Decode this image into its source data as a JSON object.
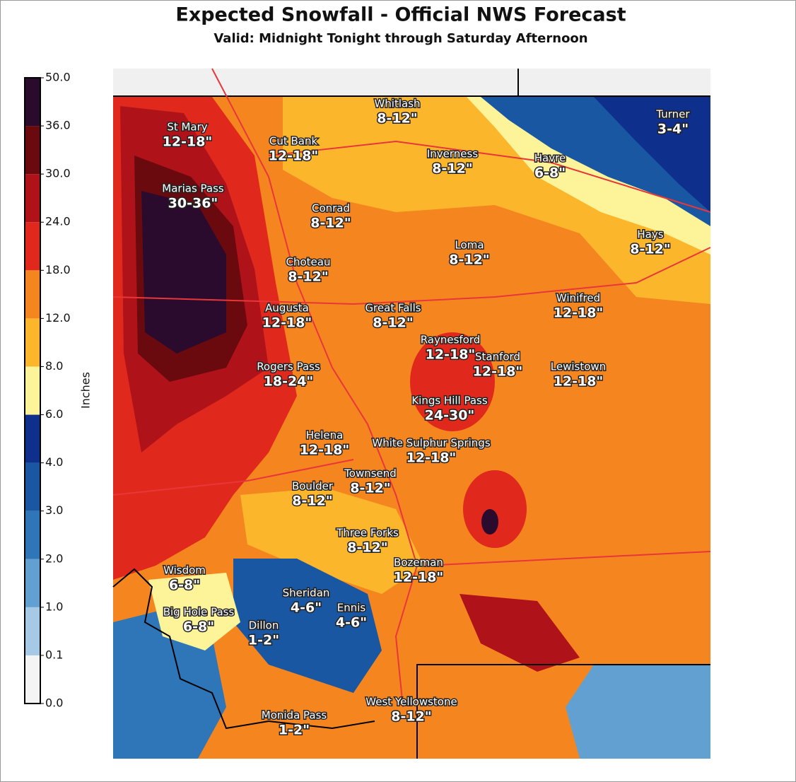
{
  "header": {
    "title": "Expected Snowfall - Official NWS Forecast",
    "subtitle": "Valid: Midnight Tonight through Saturday Afternoon"
  },
  "legend": {
    "label": "Inches",
    "ticks": [
      "0.0",
      "0.1",
      "1.0",
      "2.0",
      "3.0",
      "4.0",
      "6.0",
      "8.0",
      "12.0",
      "18.0",
      "24.0",
      "30.0",
      "36.0",
      "50.0"
    ],
    "colors": [
      "#f4f4f4",
      "#a6c9e6",
      "#62a0d2",
      "#2f76b8",
      "#1a57a3",
      "#0e2f8c",
      "#fdf49a",
      "#fbb62c",
      "#f5861f",
      "#e0281c",
      "#b0121a",
      "#6a0a0e",
      "#2a0b2e"
    ]
  },
  "locations": [
    {
      "name": "St Mary",
      "amount": "12-18\""
    },
    {
      "name": "Cut Bank",
      "amount": "12-18\""
    },
    {
      "name": "Whitlash",
      "amount": "8-12\""
    },
    {
      "name": "Turner",
      "amount": "3-4\""
    },
    {
      "name": "Inverness",
      "amount": "8-12\""
    },
    {
      "name": "Havre",
      "amount": "6-8\""
    },
    {
      "name": "Marias Pass",
      "amount": "30-36\""
    },
    {
      "name": "Conrad",
      "amount": "8-12\""
    },
    {
      "name": "Hays",
      "amount": "8-12\""
    },
    {
      "name": "Loma",
      "amount": "8-12\""
    },
    {
      "name": "Choteau",
      "amount": "8-12\""
    },
    {
      "name": "Winifred",
      "amount": "12-18\""
    },
    {
      "name": "Augusta",
      "amount": "12-18\""
    },
    {
      "name": "Great Falls",
      "amount": "8-12\""
    },
    {
      "name": "Raynesford",
      "amount": "12-18\""
    },
    {
      "name": "Stanford",
      "amount": "12-18\""
    },
    {
      "name": "Lewistown",
      "amount": "12-18\""
    },
    {
      "name": "Rogers Pass",
      "amount": "18-24\""
    },
    {
      "name": "Kings Hill Pass",
      "amount": "24-30\""
    },
    {
      "name": "Helena",
      "amount": "12-18\""
    },
    {
      "name": "White Sulphur Springs",
      "amount": "12-18\""
    },
    {
      "name": "Townsend",
      "amount": "8-12\""
    },
    {
      "name": "Boulder",
      "amount": "8-12\""
    },
    {
      "name": "Three Forks",
      "amount": "8-12\""
    },
    {
      "name": "Bozeman",
      "amount": "12-18\""
    },
    {
      "name": "Wisdom",
      "amount": "6-8\""
    },
    {
      "name": "Sheridan",
      "amount": "4-6\""
    },
    {
      "name": "Ennis",
      "amount": "4-6\""
    },
    {
      "name": "Big Hole Pass",
      "amount": "6-8\""
    },
    {
      "name": "Dillon",
      "amount": "1-2\""
    },
    {
      "name": "West Yellowstone",
      "amount": "8-12\""
    },
    {
      "name": "Monida Pass",
      "amount": "1-2\""
    }
  ]
}
